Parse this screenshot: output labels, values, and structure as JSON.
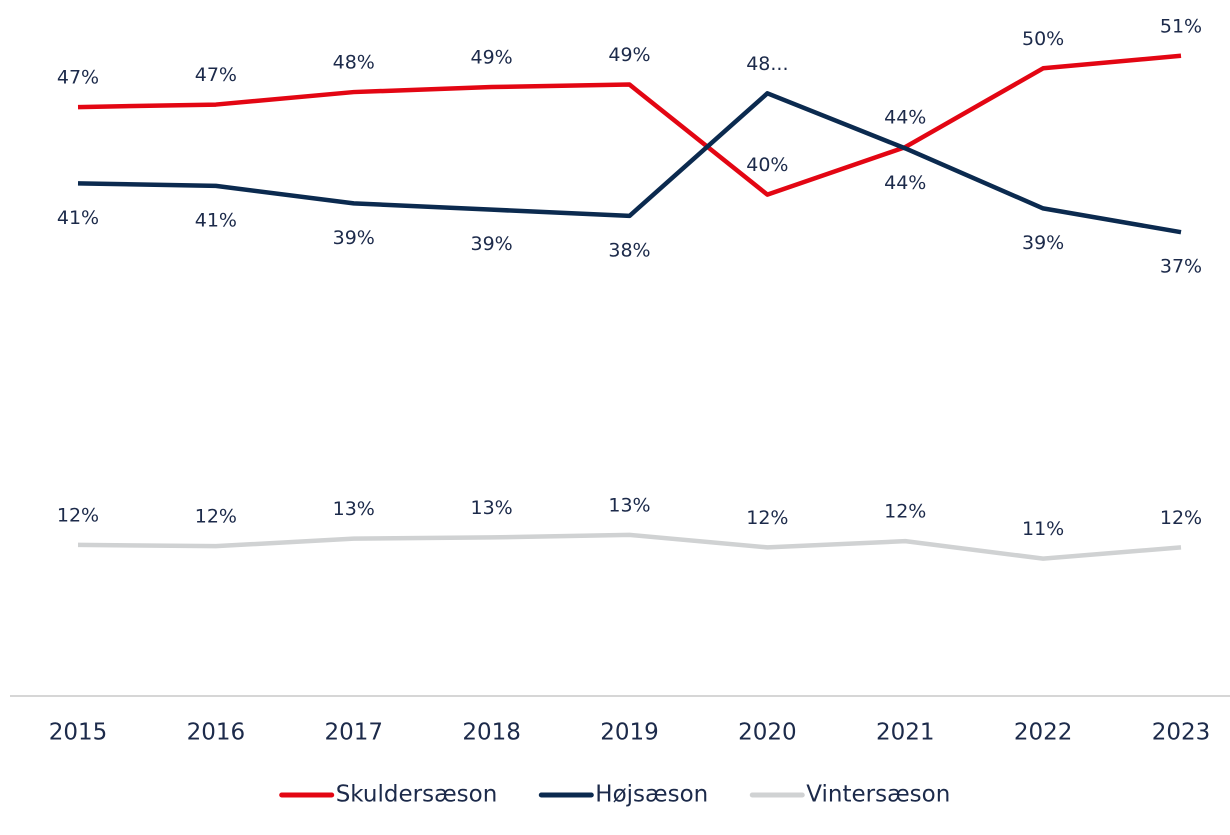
{
  "chart_data": {
    "type": "line",
    "categories": [
      "2015",
      "2016",
      "2017",
      "2018",
      "2019",
      "2020",
      "2021",
      "2022",
      "2023"
    ],
    "series": [
      {
        "name": "Skuldersæson",
        "color": "#e30613",
        "values": [
          47.0,
          47.2,
          48.2,
          48.6,
          48.8,
          40.0,
          43.8,
          50.1,
          51.1
        ],
        "value_labels": [
          "47%",
          "47%",
          "48%",
          "49%",
          "49%",
          "40%",
          "44%",
          "50%",
          "51%"
        ]
      },
      {
        "name": "Højsæson",
        "color": "#0b2a4f",
        "values": [
          40.9,
          40.7,
          39.3,
          38.8,
          38.3,
          48.1,
          43.7,
          38.9,
          37.0
        ],
        "value_labels": [
          "41%",
          "41%",
          "39%",
          "39%",
          "38%",
          "48...",
          "44%",
          "39%",
          "37%"
        ]
      },
      {
        "name": "Vintersæson",
        "color": "#d0d2d3",
        "values": [
          12.0,
          11.9,
          12.5,
          12.6,
          12.8,
          11.8,
          12.3,
          10.9,
          11.8
        ],
        "value_labels": [
          "12%",
          "12%",
          "13%",
          "13%",
          "13%",
          "12%",
          "12%",
          "11%",
          "12%"
        ]
      }
    ],
    "ylim": [
      0,
      55
    ],
    "legend": "bottom"
  }
}
